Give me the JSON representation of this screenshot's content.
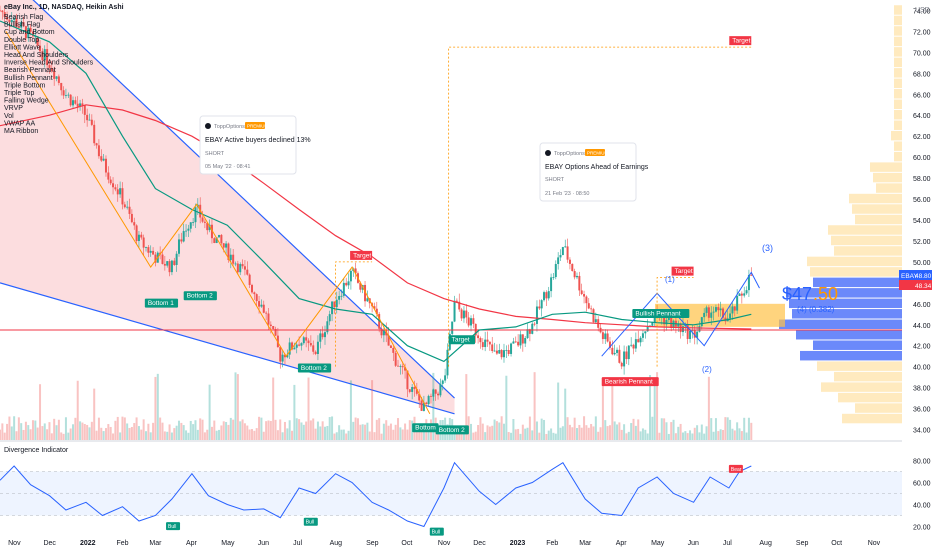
{
  "header": {
    "title": "eBay Inc., 1D, NASDAQ, Heikin Ashi"
  },
  "overlays_legend": [
    "Bearish Flag",
    "Bullish Flag",
    "Cup and Bottom",
    "Double Top",
    "Elliott Wave",
    "Head And Shoulders",
    "Inverse Head And Shoulders",
    "Bearish Pennant",
    "Bullish Pennant",
    "Triple Bottom",
    "Triple Top",
    "Falling Wedge",
    "VRVP",
    "Vol",
    "VWAP AA",
    "MA Ribbon"
  ],
  "theme": {
    "up": "#26a69a",
    "down": "#ef5350",
    "blue": "#2962ff",
    "orange": "#ff9800",
    "green_ma": "#089981",
    "red_ma": "#f23645",
    "area": "#fbd2d4",
    "vrvp_blue": "#5b7cfa",
    "vrvp_orange": "#ffc247"
  },
  "price_axis": {
    "ticks": [
      "74.00",
      "72.00",
      "70.00",
      "68.00",
      "66.00",
      "64.00",
      "62.00",
      "60.00",
      "58.00",
      "56.00",
      "54.00",
      "52.00",
      "50.00",
      "48.00",
      "46.00",
      "44.00",
      "42.00",
      "40.00",
      "38.00",
      "36.00",
      "34.00"
    ],
    "currency": "USD"
  },
  "time_axis": {
    "ticks": [
      "Nov",
      "Dec",
      "2022",
      "Feb",
      "Mar",
      "Apr",
      "May",
      "Jun",
      "Jul",
      "Aug",
      "Sep",
      "Oct",
      "Nov",
      "Dec",
      "2023",
      "Feb",
      "Mar",
      "Apr",
      "May",
      "Jun",
      "Jul",
      "Aug",
      "Sep",
      "Oct",
      "Nov"
    ]
  },
  "price_badges": {
    "symbol": "EBAY",
    "last": "48.80",
    "second": "48.34"
  },
  "big_label": {
    "price_main": "$47",
    "price_frac": ".50",
    "detail": "(4) (0.382)"
  },
  "wave_labels": [
    "(1)",
    "(2)",
    "(3)"
  ],
  "pattern_tags": {
    "bottom_1": "Bottom 1",
    "bottom_2": "Bottom 2",
    "target": "Target",
    "bullish_pennant": "Bullish Pennant",
    "bearish_pennant": "Bearish Pennant",
    "bottom": "Bottom"
  },
  "cards": [
    {
      "author": "ToppOptions",
      "badge": "PREMIUM",
      "title": "EBAY Active buyers declined 13%",
      "signal": "SHORT",
      "date": "05 May '22 · 08:41"
    },
    {
      "author": "ToppOptions",
      "badge": "PREMIUM",
      "title": "EBAY Options Ahead of Earnings",
      "signal": "SHORT",
      "date": "21 Feb '23 · 08:50"
    }
  ],
  "oscillator": {
    "title": "Divergence Indicator",
    "ticks": [
      "80.00",
      "60.00",
      "40.00",
      "20.00"
    ],
    "bull_label": "Bull",
    "bear_label": "Bear"
  },
  "chart_data": {
    "type": "line",
    "title": "eBay Inc., 1D, NASDAQ, Heikin Ashi",
    "ylim": [
      33,
      75
    ],
    "x_range": [
      "2021-10-20",
      "2023-11-25"
    ],
    "price_series": [
      [
        "2021-10-20",
        74.0
      ],
      [
        "2021-11-01",
        73.0
      ],
      [
        "2021-11-15",
        71.5
      ],
      [
        "2021-12-01",
        69.0
      ],
      [
        "2021-12-15",
        66.0
      ],
      [
        "2022-01-01",
        64.0
      ],
      [
        "2022-01-15",
        59.5
      ],
      [
        "2022-02-01",
        56.0
      ],
      [
        "2022-02-15",
        52.0
      ],
      [
        "2022-03-01",
        50.5
      ],
      [
        "2022-03-15",
        49.5
      ],
      [
        "2022-03-25",
        53.0
      ],
      [
        "2022-04-05",
        55.0
      ],
      [
        "2022-04-15",
        53.0
      ],
      [
        "2022-05-01",
        51.0
      ],
      [
        "2022-05-15",
        49.0
      ],
      [
        "2022-06-01",
        45.5
      ],
      [
        "2022-06-15",
        41.0
      ],
      [
        "2022-07-01",
        42.5
      ],
      [
        "2022-07-15",
        41.5
      ],
      [
        "2022-08-01",
        46.5
      ],
      [
        "2022-08-15",
        49.0
      ],
      [
        "2022-09-01",
        45.5
      ],
      [
        "2022-09-15",
        42.0
      ],
      [
        "2022-10-01",
        38.5
      ],
      [
        "2022-10-15",
        36.0
      ],
      [
        "2022-11-01",
        38.5
      ],
      [
        "2022-11-10",
        46.0
      ],
      [
        "2022-12-01",
        43.0
      ],
      [
        "2022-12-15",
        41.0
      ],
      [
        "2023-01-01",
        42.0
      ],
      [
        "2023-01-15",
        44.0
      ],
      [
        "2023-02-01",
        48.5
      ],
      [
        "2023-02-10",
        51.5
      ],
      [
        "2023-03-01",
        46.5
      ],
      [
        "2023-03-15",
        43.0
      ],
      [
        "2023-04-01",
        40.5
      ],
      [
        "2023-04-15",
        43.0
      ],
      [
        "2023-05-01",
        45.0
      ],
      [
        "2023-05-15",
        44.0
      ],
      [
        "2023-06-01",
        43.0
      ],
      [
        "2023-06-15",
        45.5
      ],
      [
        "2023-07-01",
        44.5
      ],
      [
        "2023-07-10",
        46.5
      ],
      [
        "2023-07-20",
        48.8
      ]
    ],
    "ma_green": [
      [
        "2021-10-20",
        73.0
      ],
      [
        "2021-12-01",
        71.0
      ],
      [
        "2022-01-01",
        68.0
      ],
      [
        "2022-02-01",
        62.0
      ],
      [
        "2022-03-01",
        57.0
      ],
      [
        "2022-04-01",
        55.0
      ],
      [
        "2022-05-01",
        53.5
      ],
      [
        "2022-06-01",
        50.0
      ],
      [
        "2022-07-01",
        46.5
      ],
      [
        "2022-08-01",
        45.5
      ],
      [
        "2022-09-01",
        45.0
      ],
      [
        "2022-10-01",
        42.0
      ],
      [
        "2022-11-01",
        40.5
      ],
      [
        "2022-12-01",
        43.5
      ],
      [
        "2023-01-01",
        43.8
      ],
      [
        "2023-02-01",
        45.0
      ],
      [
        "2023-03-01",
        45.2
      ],
      [
        "2023-04-01",
        44.5
      ],
      [
        "2023-05-01",
        44.2
      ],
      [
        "2023-06-01",
        44.0
      ],
      [
        "2023-07-01",
        44.5
      ],
      [
        "2023-07-20",
        45.0
      ]
    ],
    "ma_red": [
      [
        "2021-10-20",
        63.0
      ],
      [
        "2021-12-01",
        64.0
      ],
      [
        "2022-01-01",
        65.0
      ],
      [
        "2022-02-01",
        64.5
      ],
      [
        "2022-03-01",
        63.5
      ],
      [
        "2022-04-01",
        62.0
      ],
      [
        "2022-05-01",
        60.0
      ],
      [
        "2022-06-01",
        57.5
      ],
      [
        "2022-07-01",
        55.0
      ],
      [
        "2022-08-01",
        52.5
      ],
      [
        "2022-09-01",
        50.5
      ],
      [
        "2022-10-01",
        48.0
      ],
      [
        "2022-11-01",
        46.5
      ],
      [
        "2022-12-01",
        45.5
      ],
      [
        "2023-01-01",
        44.8
      ],
      [
        "2023-02-01",
        44.5
      ],
      [
        "2023-03-01",
        44.2
      ],
      [
        "2023-04-01",
        44.0
      ],
      [
        "2023-05-01",
        43.8
      ],
      [
        "2023-06-01",
        43.7
      ],
      [
        "2023-07-20",
        43.6
      ]
    ],
    "horizontal_level": 43.5,
    "wedge_upper": [
      [
        "2021-10-20",
        78.0
      ],
      [
        "2022-11-10",
        37.0
      ]
    ],
    "wedge_lower": [
      [
        "2021-10-20",
        48.0
      ],
      [
        "2022-11-10",
        35.5
      ]
    ],
    "targets": [
      {
        "label": "Target",
        "date": "2023-07-20",
        "price": 70.5,
        "from_date": "2022-11-05"
      },
      {
        "label": "Target",
        "date": "2022-09-01",
        "price": 50.0,
        "from_date": "2022-08-01"
      },
      {
        "label": "Target",
        "date": "2023-06-01",
        "price": 48.5,
        "from_date": "2023-05-01"
      }
    ],
    "oscillator": {
      "ylim": [
        15,
        85
      ],
      "bands": [
        70,
        50,
        30
      ],
      "values": [
        [
          "2021-10-20",
          62
        ],
        [
          "2021-11-01",
          75
        ],
        [
          "2021-11-15",
          58
        ],
        [
          "2021-12-01",
          48
        ],
        [
          "2021-12-15",
          35
        ],
        [
          "2022-01-01",
          42
        ],
        [
          "2022-01-15",
          30
        ],
        [
          "2022-02-01",
          38
        ],
        [
          "2022-02-15",
          25
        ],
        [
          "2022-03-01",
          30
        ],
        [
          "2022-03-15",
          45
        ],
        [
          "2022-04-01",
          68
        ],
        [
          "2022-04-15",
          48
        ],
        [
          "2022-05-01",
          40
        ],
        [
          "2022-05-15",
          35
        ],
        [
          "2022-06-01",
          36
        ],
        [
          "2022-06-15",
          28
        ],
        [
          "2022-07-01",
          55
        ],
        [
          "2022-07-15",
          50
        ],
        [
          "2022-08-01",
          68
        ],
        [
          "2022-08-15",
          60
        ],
        [
          "2022-09-01",
          42
        ],
        [
          "2022-09-15",
          35
        ],
        [
          "2022-10-01",
          25
        ],
        [
          "2022-10-15",
          20
        ],
        [
          "2022-11-01",
          55
        ],
        [
          "2022-11-10",
          78
        ],
        [
          "2022-12-01",
          52
        ],
        [
          "2022-12-15",
          40
        ],
        [
          "2023-01-01",
          55
        ],
        [
          "2023-01-15",
          60
        ],
        [
          "2023-02-01",
          72
        ],
        [
          "2023-02-10",
          78
        ],
        [
          "2023-03-01",
          45
        ],
        [
          "2023-03-15",
          32
        ],
        [
          "2023-04-01",
          30
        ],
        [
          "2023-04-15",
          55
        ],
        [
          "2023-05-01",
          65
        ],
        [
          "2023-05-15",
          50
        ],
        [
          "2023-06-01",
          42
        ],
        [
          "2023-06-15",
          65
        ],
        [
          "2023-07-01",
          55
        ],
        [
          "2023-07-10",
          70
        ],
        [
          "2023-07-20",
          75
        ]
      ]
    }
  }
}
